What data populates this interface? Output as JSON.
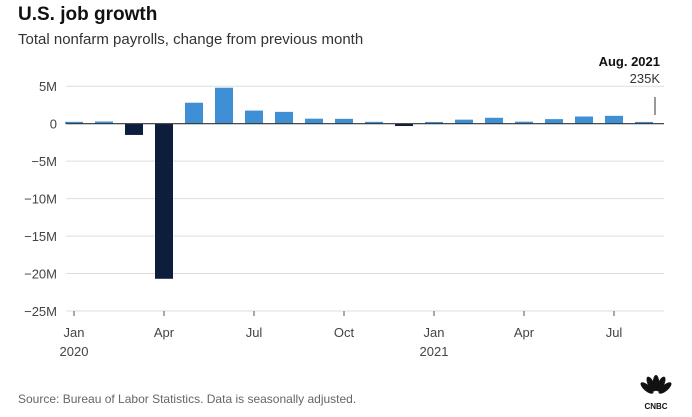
{
  "header": {
    "title": "U.S. job growth",
    "subtitle": "Total nonfarm payrolls, change from previous month"
  },
  "footer": {
    "source": "Source: Bureau of Labor Statistics. Data is seasonally adjusted.",
    "logo_text": "CNBC"
  },
  "colors": {
    "positive": "#3e8fd4",
    "negative": "#0c1e3c",
    "grid": "#dddddd",
    "zero_line": "#333333"
  },
  "chart_data": {
    "type": "bar",
    "title": "U.S. job growth",
    "subtitle": "Total nonfarm payrolls, change from previous month",
    "unit": "jobs (millions)",
    "categories": [
      "Jan 2020",
      "Feb 2020",
      "Mar 2020",
      "Apr 2020",
      "May 2020",
      "Jun 2020",
      "Jul 2020",
      "Aug 2020",
      "Sep 2020",
      "Oct 2020",
      "Nov 2020",
      "Dec 2020",
      "Jan 2021",
      "Feb 2021",
      "Mar 2021",
      "Apr 2021",
      "May 2021",
      "Jun 2021",
      "Jul 2021",
      "Aug 2021"
    ],
    "values": [
      0.25,
      0.29,
      -1.5,
      -20.7,
      2.8,
      4.8,
      1.75,
      1.58,
      0.67,
      0.65,
      0.25,
      -0.31,
      0.23,
      0.54,
      0.79,
      0.27,
      0.61,
      0.96,
      1.05,
      0.235
    ],
    "ylim": [
      -25,
      6.5
    ],
    "yticks": [
      5,
      0,
      -5,
      -10,
      -15,
      -20,
      -25
    ],
    "ytick_labels": [
      "5M",
      "0",
      "−5M",
      "−10M",
      "−15M",
      "−20M",
      "−25M"
    ],
    "xtick_labels": [
      {
        "index": 0,
        "label": "Jan",
        "year": "2020"
      },
      {
        "index": 3,
        "label": "Apr"
      },
      {
        "index": 6,
        "label": "Jul"
      },
      {
        "index": 9,
        "label": "Oct"
      },
      {
        "index": 12,
        "label": "Jan",
        "year": "2021"
      },
      {
        "index": 15,
        "label": "Apr"
      },
      {
        "index": 18,
        "label": "Jul"
      }
    ],
    "annotation": {
      "index": 19,
      "title": "Aug. 2021",
      "value": "235K"
    },
    "grid": true,
    "legend": "none"
  }
}
